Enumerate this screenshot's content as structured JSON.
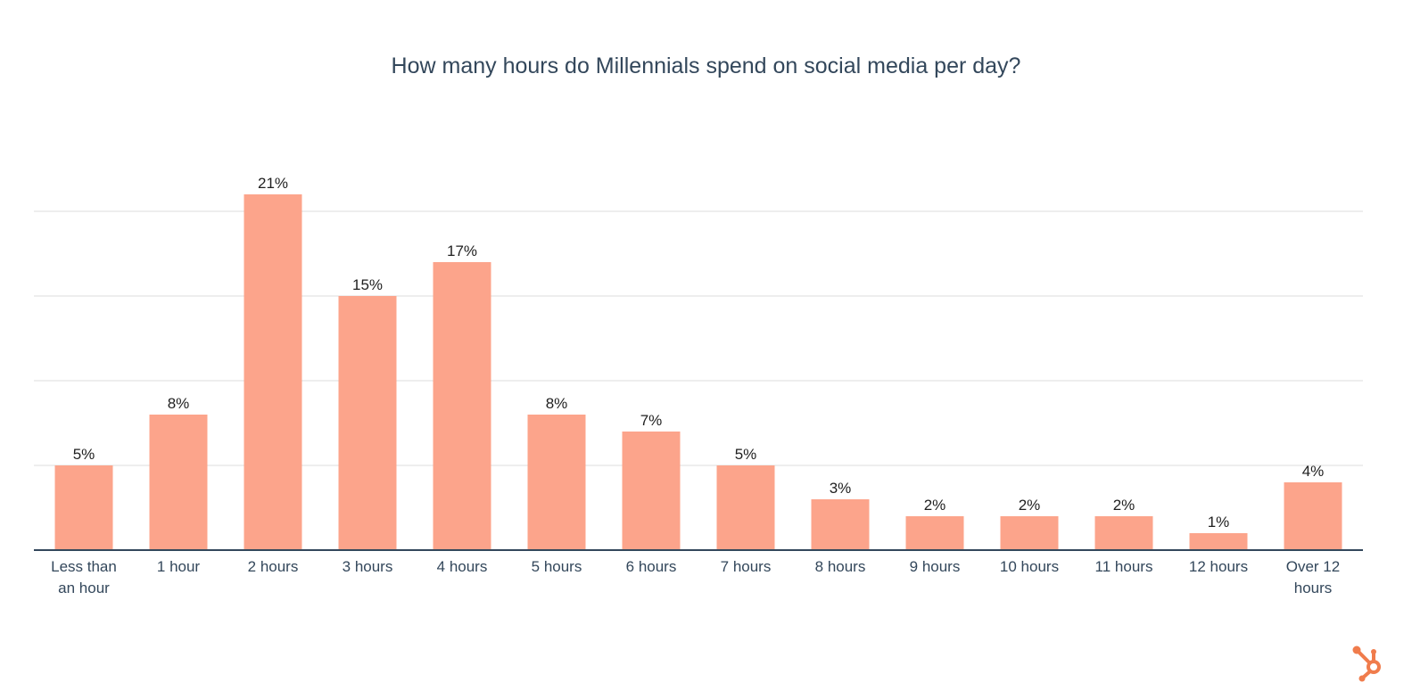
{
  "chart_data": {
    "type": "bar",
    "title": "How many hours do Millennials spend on social media per day?",
    "categories": [
      [
        "Less than",
        "an hour"
      ],
      [
        "1 hour"
      ],
      [
        "2 hours"
      ],
      [
        "3 hours"
      ],
      [
        "4 hours"
      ],
      [
        "5 hours"
      ],
      [
        "6 hours"
      ],
      [
        "7 hours"
      ],
      [
        "8 hours"
      ],
      [
        "9 hours"
      ],
      [
        "10 hours"
      ],
      [
        "11 hours"
      ],
      [
        "12 hours"
      ],
      [
        "Over 12",
        "hours"
      ]
    ],
    "values": [
      5,
      8,
      21,
      15,
      17,
      8,
      7,
      5,
      3,
      2,
      2,
      2,
      1,
      4
    ],
    "value_labels": [
      "5%",
      "8%",
      "21%",
      "15%",
      "17%",
      "8%",
      "7%",
      "5%",
      "3%",
      "2%",
      "2%",
      "2%",
      "1%",
      "4%"
    ],
    "unit": "%",
    "xlabel": "",
    "ylabel": "",
    "ylim": [
      0,
      20
    ],
    "gridlines": [
      5,
      10,
      15,
      20
    ],
    "grid": true,
    "y_tick_labels_shown": false,
    "bar_color": "#fca48b",
    "axis_color": "#33475b",
    "grid_color": "#dcdcdc"
  },
  "branding": {
    "logo": "hubspot-sprocket-icon",
    "logo_color": "#f07c4c"
  }
}
